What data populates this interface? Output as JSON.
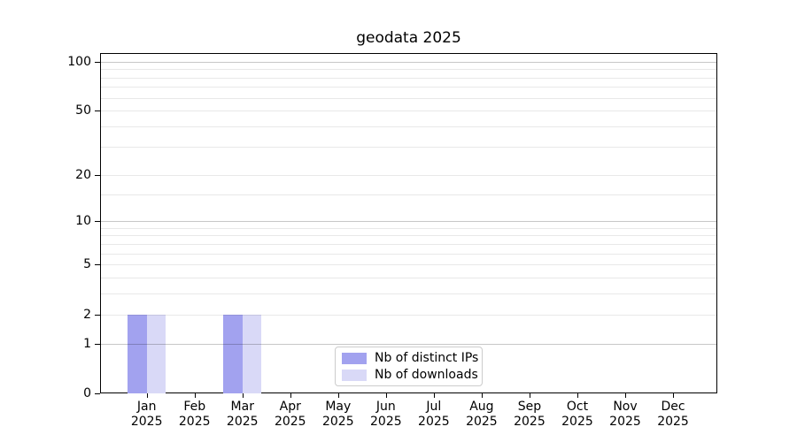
{
  "chart_data": {
    "type": "bar",
    "title": "geodata 2025",
    "categories": [
      "Jan 2025",
      "Feb 2025",
      "Mar 2025",
      "Apr 2025",
      "May 2025",
      "Jun 2025",
      "Jul 2025",
      "Aug 2025",
      "Sep 2025",
      "Oct 2025",
      "Nov 2025",
      "Dec 2025"
    ],
    "series": [
      {
        "name": "Nb of distinct IPs",
        "color": "#a2a2ef",
        "values": [
          2,
          0,
          2,
          0,
          0,
          0,
          0,
          0,
          0,
          0,
          0,
          0
        ]
      },
      {
        "name": "Nb of downloads",
        "color": "#d9d9f7",
        "values": [
          2,
          0,
          2,
          0,
          0,
          0,
          0,
          0,
          0,
          0,
          0,
          0
        ]
      }
    ],
    "xlabel": "",
    "ylabel": "",
    "yscale": "log1p",
    "ylim": [
      0,
      113
    ],
    "yticks": [
      0,
      1,
      2,
      5,
      10,
      20,
      50,
      100
    ],
    "minor_yticks": [
      3,
      4,
      6,
      7,
      8,
      9,
      15,
      30,
      40,
      60,
      70,
      80,
      90
    ],
    "major_grid_values": [
      1,
      10,
      100
    ],
    "grid": "horizontal, major and minor",
    "legend_position": "lower center"
  },
  "colors": {
    "bar_distinct_ips": "#a2a2ef",
    "bar_downloads": "#d9d9f7",
    "axis": "#000000",
    "legend_border": "#cccccc",
    "background": "#ffffff"
  }
}
